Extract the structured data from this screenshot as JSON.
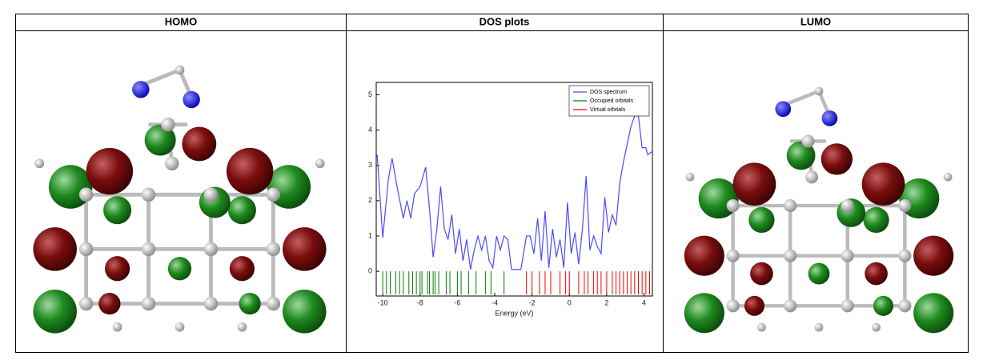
{
  "table": {
    "headers": [
      "HOMO",
      "DOS plots",
      "LUMO"
    ]
  },
  "chart_data": {
    "type": "dos",
    "xlabel": "Energy (eV)",
    "xlim": [
      -10.35,
      4.45
    ],
    "ylim": [
      -0.7,
      5.35
    ],
    "xticks": [
      -10,
      -8,
      -6,
      -4,
      -2,
      0,
      2,
      4
    ],
    "yticks": [
      0,
      1,
      2,
      3,
      4,
      5
    ],
    "legend": "upper right",
    "series": [
      {
        "name": "DOS spectrum",
        "color": "#4a4aff",
        "x": [
          -10.3,
          -10.0,
          -9.7,
          -9.5,
          -9.2,
          -8.9,
          -8.7,
          -8.5,
          -8.3,
          -8.0,
          -7.7,
          -7.5,
          -7.3,
          -7.1,
          -6.9,
          -6.7,
          -6.5,
          -6.3,
          -6.1,
          -5.9,
          -5.7,
          -5.5,
          -5.3,
          -5.1,
          -4.9,
          -4.7,
          -4.5,
          -4.3,
          -4.1,
          -3.9,
          -3.7,
          -3.5,
          -3.3,
          -3.1,
          -2.6,
          -2.3,
          -2.1,
          -1.9,
          -1.7,
          -1.5,
          -1.3,
          -1.1,
          -0.9,
          -0.7,
          -0.5,
          -0.3,
          -0.1,
          0.1,
          0.3,
          0.5,
          0.7,
          0.9,
          1.1,
          1.3,
          1.5,
          1.7,
          1.9,
          2.1,
          2.3,
          2.5,
          2.7,
          2.9,
          3.1,
          3.3,
          3.5,
          3.7,
          3.9,
          4.1,
          4.2,
          4.45
        ],
        "values": [
          3.3,
          0.95,
          2.6,
          3.2,
          2.3,
          1.5,
          2.0,
          1.5,
          2.2,
          2.4,
          2.95,
          1.8,
          0.4,
          1.2,
          2.4,
          1.2,
          0.9,
          1.6,
          0.5,
          1.2,
          0.3,
          0.9,
          0.05,
          0.6,
          1.0,
          0.6,
          1.0,
          0.3,
          0.1,
          1.0,
          0.6,
          1.0,
          0.9,
          0.05,
          0.05,
          1.0,
          1.0,
          0.5,
          1.5,
          0.3,
          1.7,
          0.1,
          1.2,
          0.4,
          0.9,
          0.1,
          1.95,
          0.5,
          1.1,
          0.2,
          1.2,
          2.7,
          0.6,
          1.0,
          0.7,
          0.5,
          2.1,
          1.1,
          1.6,
          1.3,
          2.5,
          3.1,
          3.6,
          4.1,
          4.4,
          4.4,
          3.5,
          3.5,
          3.3,
          3.4
        ]
      },
      {
        "name": "Occupied orbitals",
        "color": "#008000",
        "x": [
          -10.0,
          -9.8,
          -9.6,
          -9.3,
          -9.1,
          -8.9,
          -8.6,
          -8.4,
          -8.2,
          -8.0,
          -7.9,
          -7.6,
          -7.5,
          -7.3,
          -7.2,
          -7.0,
          -6.6,
          -6.4,
          -6.0,
          -5.8,
          -5.4,
          -5.0,
          -4.5,
          -4.2,
          -3.5
        ]
      },
      {
        "name": "Virtual orbitals",
        "color": "#ff0000",
        "x": [
          -2.3,
          -2.0,
          -1.6,
          -1.3,
          -1.0,
          -0.5,
          -0.2,
          0.0,
          0.5,
          0.8,
          1.0,
          1.3,
          1.5,
          1.7,
          2.0,
          2.3,
          2.5,
          2.7,
          2.9,
          3.1,
          3.3,
          3.5,
          3.7,
          3.9,
          4.1,
          4.3
        ]
      }
    ]
  }
}
